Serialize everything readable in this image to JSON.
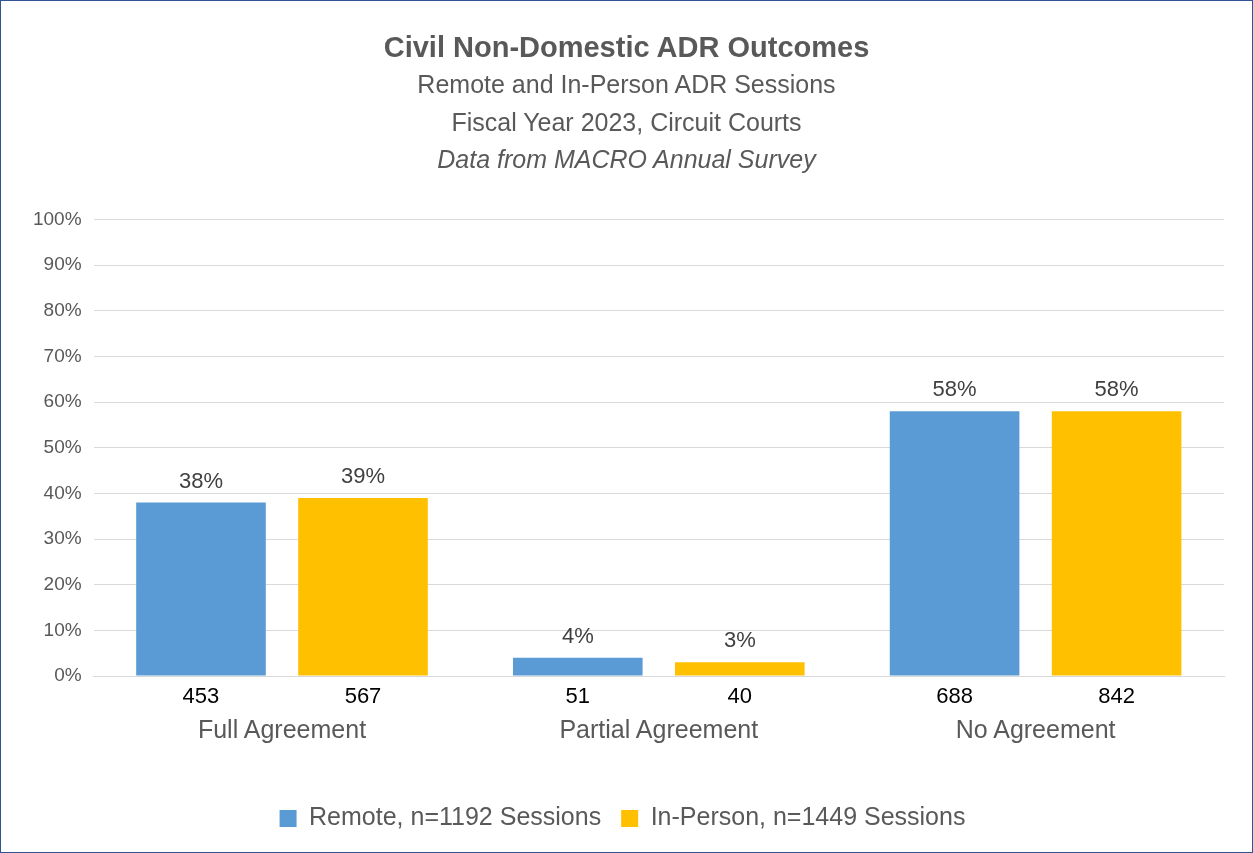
{
  "chart_data": {
    "type": "bar",
    "title": "Civil Non-Domestic ADR Outcomes",
    "subtitle": "Remote and In-Person ADR Sessions\nFiscal Year 2023, Circuit Courts",
    "annotations": [
      "Data from MACRO Annual Survey",
      "453",
      "567",
      "51",
      "40",
      "688",
      "842"
    ],
    "categories": [
      "Full Agreement",
      "Partial Agreement",
      "No Agreement"
    ],
    "series": [
      {
        "name": "Remote, n=1192 Sessions",
        "color": "#5b9bd5",
        "values": [
          38,
          4,
          58
        ],
        "value_labels": [
          "38%",
          "4%",
          "58%"
        ]
      },
      {
        "name": "In-Person, n=1449 Sessions",
        "color": "#ffc000",
        "values": [
          39,
          3,
          58
        ],
        "value_labels": [
          "39%",
          "3%",
          "58%"
        ]
      }
    ],
    "ylim": [
      0,
      100
    ],
    "yticks": [
      {
        "value": 0,
        "label": "0%"
      },
      {
        "value": 10,
        "label": "10%"
      },
      {
        "value": 20,
        "label": "20%"
      },
      {
        "value": 30,
        "label": "30%"
      },
      {
        "value": 40,
        "label": "40%"
      },
      {
        "value": 50,
        "label": "50%"
      },
      {
        "value": 60,
        "label": "60%"
      },
      {
        "value": 70,
        "label": "70%"
      },
      {
        "value": 80,
        "label": "80%"
      },
      {
        "value": 90,
        "label": "90%"
      },
      {
        "value": 100,
        "label": "100%"
      }
    ],
    "grid": "y",
    "legend": "bottom"
  }
}
